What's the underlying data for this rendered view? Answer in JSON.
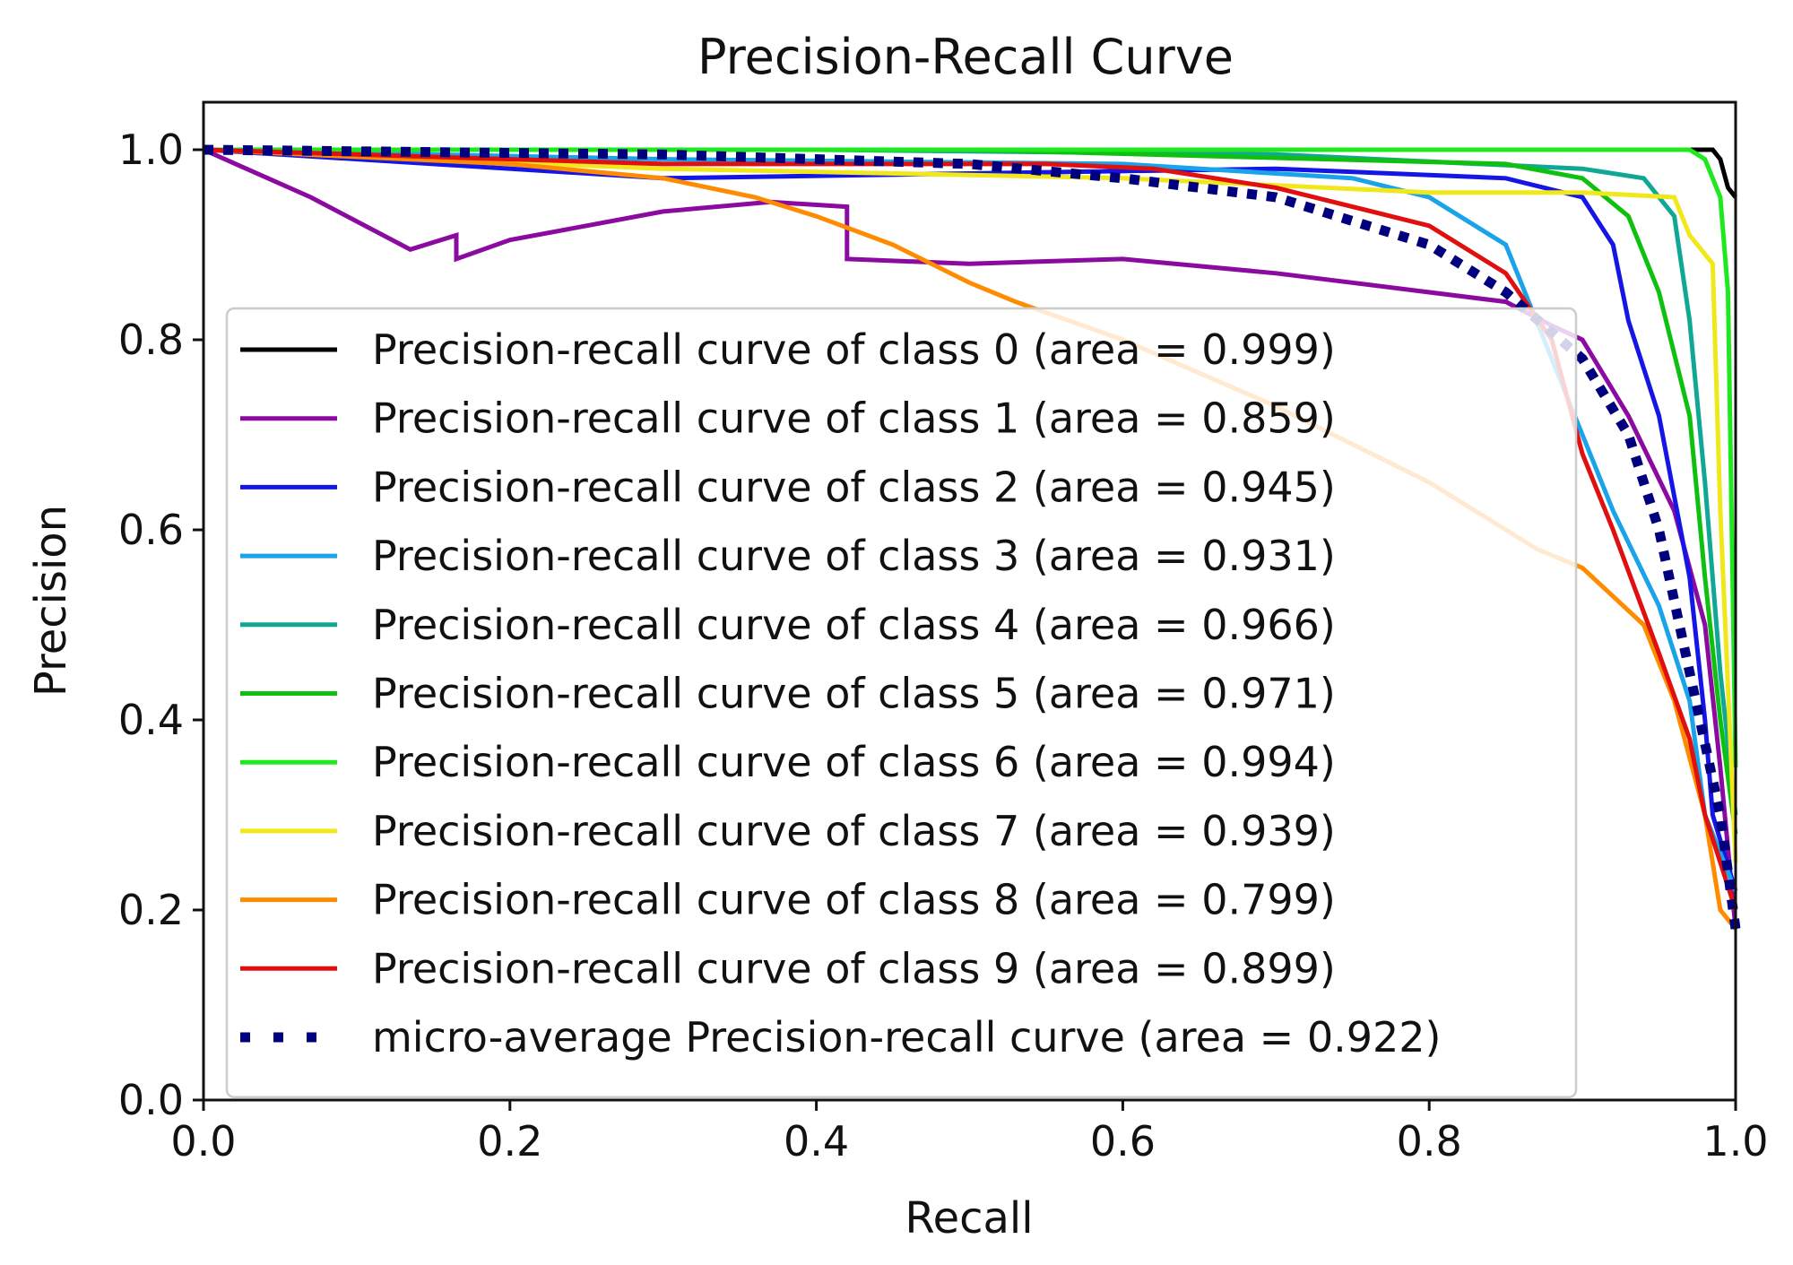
{
  "chart_data": {
    "type": "line",
    "title": "Precision-Recall Curve",
    "xlabel": "Recall",
    "ylabel": "Precision",
    "xlim": [
      0.0,
      1.0
    ],
    "ylim": [
      0.0,
      1.05
    ],
    "xticks": [
      "0.0",
      "0.2",
      "0.4",
      "0.6",
      "0.8",
      "1.0"
    ],
    "yticks": [
      "0.0",
      "0.2",
      "0.4",
      "0.6",
      "0.8",
      "1.0"
    ],
    "grid": false,
    "legend_position": "center-left",
    "series": [
      {
        "name": "Precision-recall curve of class 0 (area = 0.999)",
        "color": "#000000",
        "style": "solid",
        "points": [
          [
            0,
            1.0
          ],
          [
            0.3,
            1.0
          ],
          [
            0.6,
            1.0
          ],
          [
            0.9,
            1.0
          ],
          [
            0.985,
            1.0
          ],
          [
            0.99,
            0.99
          ],
          [
            0.995,
            0.96
          ],
          [
            1.0,
            0.95
          ]
        ]
      },
      {
        "name": "Precision-recall curve of class 1 (area = 0.859)",
        "color": "#8b0a9f",
        "style": "solid",
        "points": [
          [
            0,
            1.0
          ],
          [
            0.07,
            0.95
          ],
          [
            0.135,
            0.895
          ],
          [
            0.165,
            0.91
          ],
          [
            0.165,
            0.885
          ],
          [
            0.2,
            0.905
          ],
          [
            0.3,
            0.935
          ],
          [
            0.37,
            0.945
          ],
          [
            0.42,
            0.94
          ],
          [
            0.42,
            0.885
          ],
          [
            0.5,
            0.88
          ],
          [
            0.6,
            0.885
          ],
          [
            0.7,
            0.87
          ],
          [
            0.8,
            0.85
          ],
          [
            0.85,
            0.84
          ],
          [
            0.88,
            0.815
          ],
          [
            0.9,
            0.8
          ],
          [
            0.93,
            0.72
          ],
          [
            0.96,
            0.62
          ],
          [
            0.98,
            0.5
          ],
          [
            0.99,
            0.35
          ],
          [
            1.0,
            0.18
          ]
        ]
      },
      {
        "name": "Precision-recall curve of class 2 (area = 0.945)",
        "color": "#1515e6",
        "style": "solid",
        "points": [
          [
            0,
            1.0
          ],
          [
            0.3,
            0.97
          ],
          [
            0.5,
            0.975
          ],
          [
            0.7,
            0.98
          ],
          [
            0.85,
            0.97
          ],
          [
            0.9,
            0.95
          ],
          [
            0.92,
            0.9
          ],
          [
            0.93,
            0.82
          ],
          [
            0.95,
            0.72
          ],
          [
            0.97,
            0.55
          ],
          [
            0.98,
            0.4
          ],
          [
            0.985,
            0.3
          ],
          [
            1.0,
            0.22
          ]
        ]
      },
      {
        "name": "Precision-recall curve of class 3 (area = 0.931)",
        "color": "#1aa3e8",
        "style": "solid",
        "points": [
          [
            0,
            1.0
          ],
          [
            0.3,
            0.99
          ],
          [
            0.6,
            0.985
          ],
          [
            0.75,
            0.97
          ],
          [
            0.8,
            0.95
          ],
          [
            0.85,
            0.9
          ],
          [
            0.87,
            0.82
          ],
          [
            0.9,
            0.7
          ],
          [
            0.92,
            0.62
          ],
          [
            0.95,
            0.52
          ],
          [
            0.97,
            0.42
          ],
          [
            0.98,
            0.3
          ],
          [
            1.0,
            0.22
          ]
        ]
      },
      {
        "name": "Precision-recall curve of class 4 (area = 0.966)",
        "color": "#10a894",
        "style": "solid",
        "points": [
          [
            0,
            1.0
          ],
          [
            0.4,
            1.0
          ],
          [
            0.7,
            0.995
          ],
          [
            0.9,
            0.98
          ],
          [
            0.94,
            0.97
          ],
          [
            0.96,
            0.93
          ],
          [
            0.97,
            0.82
          ],
          [
            0.98,
            0.65
          ],
          [
            0.99,
            0.45
          ],
          [
            1.0,
            0.3
          ]
        ]
      },
      {
        "name": "Precision-recall curve of class 5 (area = 0.971)",
        "color": "#10c010",
        "style": "solid",
        "points": [
          [
            0,
            1.0
          ],
          [
            0.5,
            1.0
          ],
          [
            0.85,
            0.985
          ],
          [
            0.9,
            0.97
          ],
          [
            0.93,
            0.93
          ],
          [
            0.95,
            0.85
          ],
          [
            0.97,
            0.72
          ],
          [
            0.98,
            0.55
          ],
          [
            0.99,
            0.4
          ],
          [
            1.0,
            0.28
          ]
        ]
      },
      {
        "name": "Precision-recall curve of class 6 (area = 0.994)",
        "color": "#1ee81e",
        "style": "solid",
        "points": [
          [
            0,
            1.0
          ],
          [
            0.5,
            1.0
          ],
          [
            0.97,
            1.0
          ],
          [
            0.98,
            0.99
          ],
          [
            0.99,
            0.95
          ],
          [
            0.995,
            0.85
          ],
          [
            1.0,
            0.35
          ]
        ]
      },
      {
        "name": "Precision-recall curve of class 7 (area = 0.939)",
        "color": "#f0e81a",
        "style": "solid",
        "points": [
          [
            0,
            1.0
          ],
          [
            0.3,
            0.98
          ],
          [
            0.6,
            0.97
          ],
          [
            0.8,
            0.955
          ],
          [
            0.9,
            0.955
          ],
          [
            0.96,
            0.95
          ],
          [
            0.97,
            0.91
          ],
          [
            0.985,
            0.88
          ],
          [
            0.99,
            0.62
          ],
          [
            1.0,
            0.25
          ]
        ]
      },
      {
        "name": "Precision-recall curve of class 8 (area = 0.799)",
        "color": "#ff8c00",
        "style": "solid",
        "points": [
          [
            0,
            1.0
          ],
          [
            0.2,
            0.985
          ],
          [
            0.3,
            0.97
          ],
          [
            0.36,
            0.95
          ],
          [
            0.4,
            0.93
          ],
          [
            0.45,
            0.9
          ],
          [
            0.5,
            0.86
          ],
          [
            0.53,
            0.84
          ],
          [
            0.6,
            0.8
          ],
          [
            0.7,
            0.73
          ],
          [
            0.8,
            0.65
          ],
          [
            0.87,
            0.58
          ],
          [
            0.9,
            0.56
          ],
          [
            0.94,
            0.5
          ],
          [
            0.96,
            0.42
          ],
          [
            0.98,
            0.3
          ],
          [
            0.99,
            0.2
          ],
          [
            1.0,
            0.18
          ]
        ]
      },
      {
        "name": "Precision-recall curve of class 9 (area = 0.899)",
        "color": "#e01010",
        "style": "solid",
        "points": [
          [
            0,
            1.0
          ],
          [
            0.3,
            0.985
          ],
          [
            0.55,
            0.985
          ],
          [
            0.62,
            0.98
          ],
          [
            0.7,
            0.96
          ],
          [
            0.8,
            0.92
          ],
          [
            0.85,
            0.87
          ],
          [
            0.88,
            0.8
          ],
          [
            0.9,
            0.68
          ],
          [
            0.92,
            0.6
          ],
          [
            0.95,
            0.47
          ],
          [
            0.97,
            0.38
          ],
          [
            0.98,
            0.3
          ],
          [
            1.0,
            0.2
          ]
        ]
      },
      {
        "name": "micro-average Precision-recall curve (area = 0.922)",
        "color": "#00007f",
        "style": "dotted",
        "points": [
          [
            0,
            1.0
          ],
          [
            0.3,
            0.995
          ],
          [
            0.5,
            0.985
          ],
          [
            0.6,
            0.97
          ],
          [
            0.7,
            0.95
          ],
          [
            0.8,
            0.9
          ],
          [
            0.85,
            0.85
          ],
          [
            0.9,
            0.78
          ],
          [
            0.93,
            0.7
          ],
          [
            0.95,
            0.6
          ],
          [
            0.97,
            0.45
          ],
          [
            0.99,
            0.3
          ],
          [
            1.0,
            0.18
          ]
        ]
      }
    ]
  }
}
